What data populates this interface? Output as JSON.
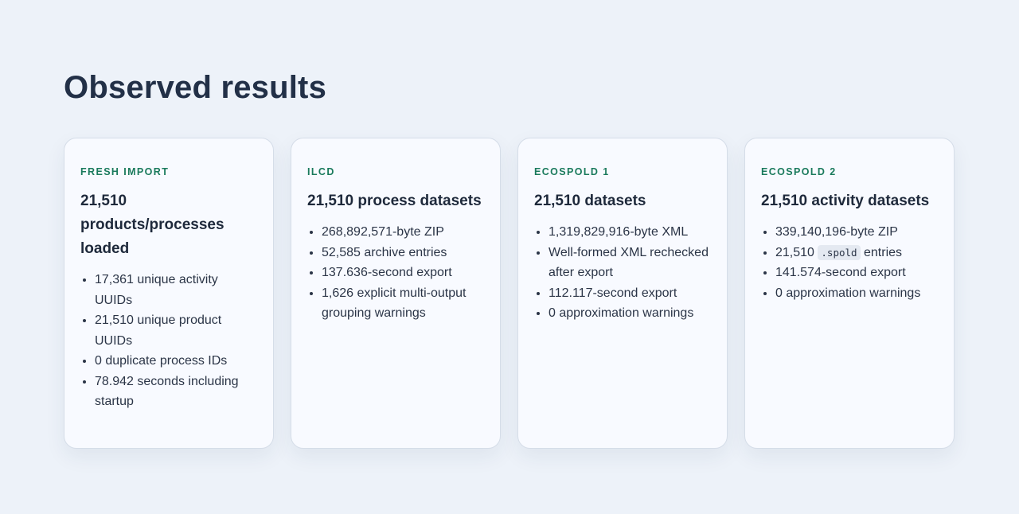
{
  "page": {
    "title": "Observed results"
  },
  "cards": [
    {
      "label": "FRESH IMPORT",
      "headline": "21,510 products/processes loaded",
      "items": [
        "17,361 unique activity UUIDs",
        "21,510 unique product UUIDs",
        "0 duplicate process IDs",
        "78.942 seconds including startup"
      ]
    },
    {
      "label": "ILCD",
      "headline": "21,510 process datasets",
      "items": [
        "268,892,571-byte ZIP",
        "52,585 archive entries",
        "137.636-second export",
        "1,626 explicit multi-output grouping warnings"
      ]
    },
    {
      "label": "ECOSPOLD 1",
      "headline": "21,510 datasets",
      "items": [
        "1,319,829,916-byte XML",
        "Well-formed XML rechecked after export",
        "112.117-second export",
        "0 approximation warnings"
      ]
    },
    {
      "label": "ECOSPOLD 2",
      "headline": "21,510 activity datasets",
      "items": [
        "339,140,196-byte ZIP",
        {
          "before": "21,510",
          "code": ".spold",
          "after": "entries"
        },
        "141.574-second export",
        "0 approximation warnings"
      ]
    }
  ],
  "colors": {
    "background": "#edf2f9",
    "card_background": "#f8faff",
    "label_accent": "#1a7a5c",
    "title": "#223047"
  }
}
